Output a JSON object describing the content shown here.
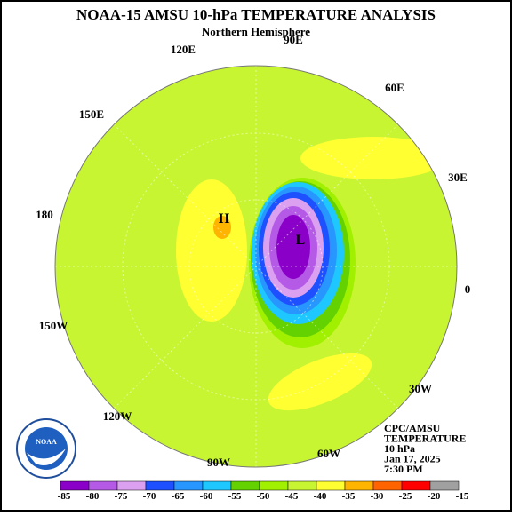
{
  "header": {
    "title": "NOAA-15 AMSU 10-hPa TEMPERATURE ANALYSIS",
    "subtitle": "Northern Hemisphere"
  },
  "map": {
    "longitude_labels": [
      "90E",
      "120E",
      "60E",
      "150E",
      "30E",
      "180",
      "0",
      "150W",
      "30W",
      "120W",
      "60W",
      "90W"
    ],
    "high_label": "H",
    "low_label": "L"
  },
  "info": [
    "CPC/AMSU",
    "TEMPERATURE",
    "10 hPa",
    "Jan 17, 2025",
    "7:30 PM"
  ],
  "legend": {
    "ticks": [
      "-85",
      "-80",
      "-75",
      "-70",
      "-65",
      "-60",
      "-55",
      "-50",
      "-45",
      "-40",
      "-35",
      "-30",
      "-25",
      "-20",
      "-15"
    ],
    "colors": [
      "#8b00c8",
      "#b45ae6",
      "#dca0f0",
      "#1e50ff",
      "#2896ff",
      "#1ec8ff",
      "#64d200",
      "#a0f000",
      "#c8f532",
      "#ffff32",
      "#ffb400",
      "#ff6400",
      "#ff0000",
      "#a0a0a0"
    ]
  }
}
